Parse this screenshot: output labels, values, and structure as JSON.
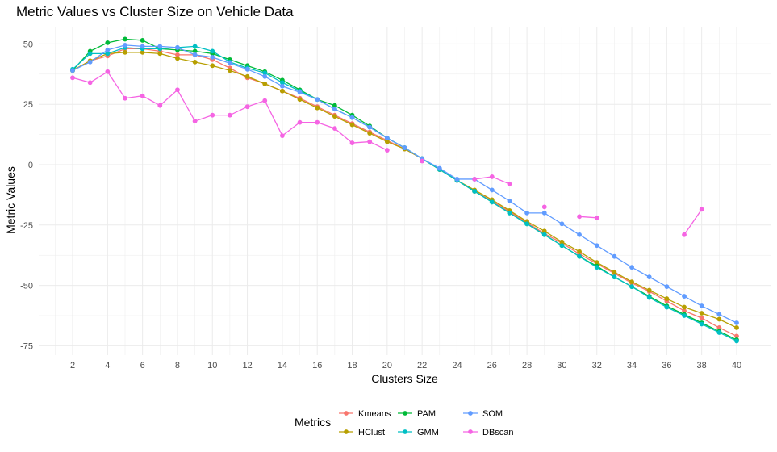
{
  "chart_data": {
    "type": "line",
    "title": "Metric Values vs Cluster Size on Vehicle Data",
    "xlabel": "Clusters Size",
    "ylabel": "Metric Values",
    "xlim": [
      2,
      40
    ],
    "ylim": [
      -78,
      57
    ],
    "x_ticks": [
      2,
      4,
      6,
      8,
      10,
      12,
      14,
      16,
      18,
      20,
      22,
      24,
      26,
      28,
      30,
      32,
      34,
      36,
      38,
      40
    ],
    "y_ticks": [
      50,
      25,
      0,
      -25,
      -50,
      -75
    ],
    "y_tick_labels": [
      "50",
      "25",
      "0",
      "-25",
      "-50",
      "-75"
    ],
    "legend_title": "Metrics",
    "legend_position": "bottom",
    "x": [
      2,
      3,
      4,
      5,
      6,
      7,
      8,
      9,
      10,
      11,
      12,
      13,
      14,
      15,
      16,
      17,
      18,
      19,
      20,
      21,
      22,
      23,
      24,
      25,
      26,
      27,
      28,
      29,
      30,
      31,
      32,
      33,
      34,
      35,
      36,
      37,
      38,
      39,
      40
    ],
    "series": [
      {
        "name": "Kmeans",
        "color": "#F8766D",
        "values": [
          39,
          43,
          45,
          48,
          48,
          47,
          45.5,
          45.5,
          43.5,
          40,
          36,
          33.5,
          30.5,
          27.5,
          24,
          20.5,
          17,
          13.5,
          10,
          6.5,
          2.5,
          -2,
          -6.5,
          -11,
          -15,
          -19.5,
          -24,
          -28.5,
          -32.5,
          -37,
          -41,
          -45,
          -49,
          -52.5,
          -56.5,
          -60.5,
          -63.5,
          -67.5,
          -71
        ]
      },
      {
        "name": "HClust",
        "color": "#B79F00",
        "values": [
          39,
          43,
          46,
          46.5,
          46.5,
          46,
          44,
          42.5,
          41,
          39,
          36.5,
          33.5,
          30.5,
          27,
          23.5,
          20,
          16.5,
          13,
          9.5,
          6.5,
          2.5,
          -2,
          -6.5,
          -10.5,
          -14.5,
          -19,
          -23.5,
          -27.5,
          -32,
          -36,
          -40.5,
          -44.5,
          -48.5,
          -52,
          -55.5,
          -59,
          -61.5,
          -64,
          -67.5
        ]
      },
      {
        "name": "PAM",
        "color": "#00BA38",
        "values": [
          39,
          47,
          50.5,
          52,
          51.5,
          48,
          47.5,
          47,
          46,
          43.5,
          41,
          38.5,
          35,
          31,
          27,
          24.5,
          20.5,
          16,
          11,
          7,
          2.5,
          -2,
          -6.5,
          -11,
          -15.5,
          -20,
          -24.5,
          -29,
          -33.5,
          -38,
          -42,
          -46.5,
          -50.5,
          -54.5,
          -58.5,
          -62,
          -65.5,
          -69,
          -72.5
        ]
      },
      {
        "name": "GMM",
        "color": "#00BFC4",
        "values": [
          39.5,
          46,
          46,
          48.5,
          48,
          48,
          48.5,
          49,
          47,
          42.5,
          40,
          38,
          34,
          30.5,
          27,
          23,
          19.5,
          15.5,
          11,
          7,
          2.5,
          -2,
          -6.5,
          -11,
          -15.5,
          -20,
          -24.5,
          -29,
          -33.5,
          -38,
          -42.5,
          -46.5,
          -50.5,
          -55,
          -59,
          -62.5,
          -66,
          -69.5,
          -73
        ]
      },
      {
        "name": "SOM",
        "color": "#619CFF",
        "values": [
          39,
          42.5,
          47.5,
          49.5,
          49,
          49,
          48.5,
          45.5,
          44.5,
          42,
          39.5,
          36.5,
          32.5,
          30,
          27,
          23,
          19.5,
          15.5,
          11,
          7,
          2.5,
          -1.5,
          -6,
          -6,
          -10.5,
          -15,
          -20,
          -20,
          -24.5,
          -29,
          -33.5,
          -38,
          -42.5,
          -46.5,
          -50.5,
          -54.5,
          -58.5,
          -62,
          -65.5
        ]
      },
      {
        "name": "DBscan",
        "color": "#F564E3",
        "values": [
          36,
          34,
          38.5,
          27.5,
          28.5,
          24.5,
          31,
          18,
          20.5,
          20.5,
          24,
          26.5,
          12,
          17.5,
          17.5,
          15,
          9,
          9.5,
          6,
          null,
          1.5,
          null,
          null,
          -6,
          -5,
          -8,
          null,
          -17.5,
          null,
          -21.5,
          -22,
          null,
          null,
          null,
          null,
          -29,
          -18.5,
          null,
          null
        ]
      }
    ]
  }
}
